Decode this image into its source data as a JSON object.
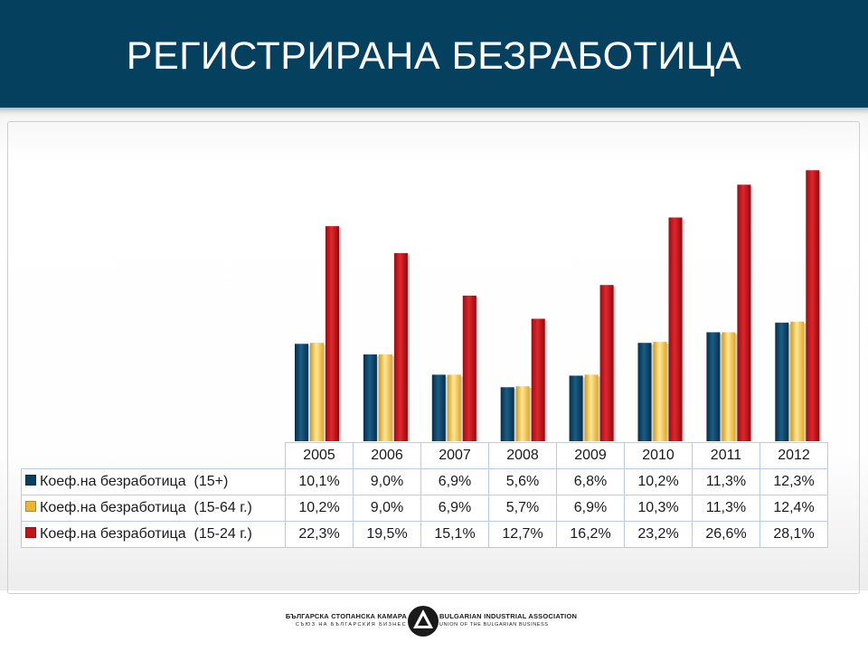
{
  "slide": {
    "title": "РЕГИСТРИРАНА БЕЗРАБОТИЦА"
  },
  "colors": {
    "header_bg": "#05405f",
    "series_15plus": "#0b3e5e",
    "series_15_64": "#e8b830",
    "series_15_24": "#c0141a"
  },
  "chart_data": {
    "type": "bar",
    "categories": [
      "2005",
      "2006",
      "2007",
      "2008",
      "2009",
      "2010",
      "2011",
      "2012"
    ],
    "series": [
      {
        "name": "Коеф.на безработица  (15+)",
        "values": [
          10.1,
          9.0,
          6.9,
          5.6,
          6.8,
          10.2,
          11.3,
          12.3
        ],
        "labels": [
          "10,1%",
          "9,0%",
          "6,9%",
          "5,6%",
          "6,8%",
          "10,2%",
          "11,3%",
          "12,3%"
        ],
        "color": "#0b3e5e"
      },
      {
        "name": "Коеф.на безработица  (15-64 г.)",
        "values": [
          10.2,
          9.0,
          6.9,
          5.7,
          6.9,
          10.3,
          11.3,
          12.4
        ],
        "labels": [
          "10,2%",
          "9,0%",
          "6,9%",
          "5,7%",
          "6,9%",
          "10,3%",
          "11,3%",
          "12,4%"
        ],
        "color": "#e8b830"
      },
      {
        "name": "Коеф.на безработица  (15-24 г.)",
        "values": [
          22.3,
          19.5,
          15.1,
          12.7,
          16.2,
          23.2,
          26.6,
          28.1
        ],
        "labels": [
          "22,3%",
          "19,5%",
          "15,1%",
          "12,7%",
          "16,2%",
          "23,2%",
          "26,6%",
          "28,1%"
        ],
        "color": "#c0141a"
      }
    ],
    "title": "",
    "xlabel": "",
    "ylabel": "",
    "ylim": [
      0,
      30
    ],
    "grid": false,
    "data_table": true
  },
  "footer": {
    "org_bg_line1": "БЪЛГАРСКА СТОПАНСКА КАМАРА",
    "org_bg_line2": "СЪЮЗ НА БЪЛГАРСКИЯ БИЗНЕС",
    "org_en_line1": "BULGARIAN INDUSTRIAL ASSOCIATION",
    "org_en_line2": "UNION OF THE BULGARIAN BUSINESS"
  }
}
